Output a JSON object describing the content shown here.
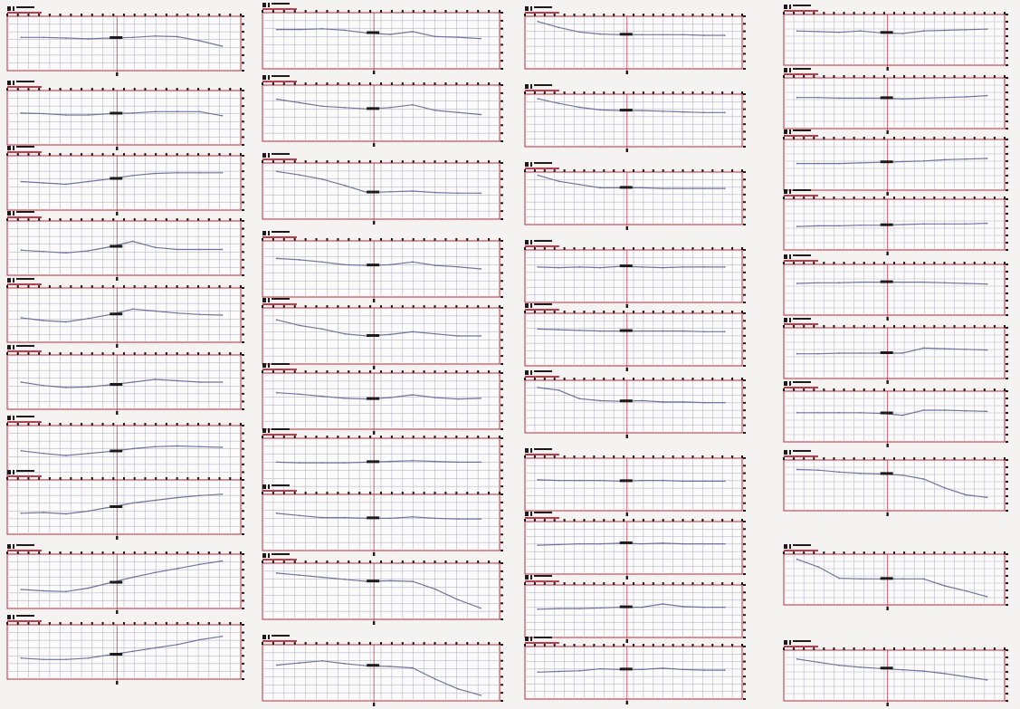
{
  "chart_data": {
    "type": "line",
    "title": "",
    "xlabel": "",
    "ylabel": "",
    "grid": true,
    "columns": [
      {
        "panels": [
          {
            "values": [
              4.9,
              4.9,
              4.8,
              4.7,
              4.8,
              4.9,
              5.1,
              5.0,
              4.4,
              3.6
            ]
          },
          {
            "values": [
              4.7,
              4.6,
              4.4,
              4.4,
              4.6,
              4.7,
              4.9,
              4.9,
              4.9,
              4.3
            ]
          },
          {
            "values": [
              4.2,
              4.0,
              3.8,
              4.2,
              4.6,
              5.1,
              5.4,
              5.5,
              5.5,
              5.5
            ]
          },
          {
            "values": [
              3.7,
              3.5,
              3.3,
              3.6,
              4.2,
              5.0,
              4.1,
              3.8,
              3.8,
              3.8
            ]
          },
          {
            "values": [
              3.6,
              3.2,
              3.0,
              3.5,
              4.1,
              4.9,
              4.6,
              4.3,
              4.1,
              4.0
            ]
          },
          {
            "values": [
              4.0,
              3.5,
              3.2,
              3.3,
              3.6,
              4.0,
              4.4,
              4.2,
              4.0,
              4.0
            ]
          },
          {
            "values": [
              4.3,
              3.9,
              3.6,
              3.9,
              4.2,
              4.6,
              4.9,
              5.0,
              4.9,
              4.8
            ]
          },
          {
            "values": [
              3.1,
              3.2,
              3.0,
              3.4,
              4.0,
              4.6,
              5.0,
              5.4,
              5.7,
              5.9
            ]
          },
          {
            "values": [
              2.8,
              2.6,
              2.5,
              3.0,
              3.8,
              4.6,
              5.3,
              5.9,
              6.5,
              7.0
            ]
          },
          {
            "values": [
              3.1,
              2.9,
              2.9,
              3.1,
              3.6,
              4.1,
              4.6,
              5.1,
              5.8,
              6.3
            ]
          }
        ]
      },
      {
        "panels": [
          {
            "values": [
              5.6,
              5.6,
              5.7,
              5.5,
              5.1,
              4.9,
              5.3,
              4.6,
              4.5,
              4.3
            ]
          },
          {
            "values": [
              6.0,
              5.5,
              5.0,
              4.8,
              4.6,
              4.8,
              5.2,
              4.4,
              4.1,
              3.8
            ]
          },
          {
            "values": [
              6.8,
              6.3,
              5.7,
              4.8,
              3.8,
              3.9,
              4.0,
              3.8,
              3.7,
              3.7
            ]
          },
          {
            "values": [
              5.5,
              5.3,
              5.0,
              4.6,
              4.5,
              4.6,
              5.0,
              4.5,
              4.3,
              4.0
            ]
          },
          {
            "values": [
              6.3,
              5.5,
              5.0,
              4.3,
              4.0,
              4.2,
              4.6,
              4.3,
              4.0,
              4.0
            ]
          },
          {
            "values": [
              5.2,
              5.0,
              4.7,
              4.4,
              4.3,
              4.5,
              4.9,
              4.5,
              4.3,
              4.4
            ]
          },
          {
            "values": [
              4.6,
              4.5,
              4.5,
              4.5,
              4.6,
              4.7,
              4.8,
              4.7,
              4.6,
              4.6
            ]
          },
          {
            "values": [
              5.3,
              5.0,
              4.7,
              4.7,
              4.6,
              4.6,
              4.8,
              4.6,
              4.5,
              4.5
            ]
          },
          {
            "values": [
              6.6,
              6.3,
              6.0,
              5.7,
              5.4,
              5.5,
              5.4,
              4.3,
              2.8,
              1.6
            ]
          },
          {
            "values": [
              5.1,
              5.4,
              5.7,
              5.3,
              5.0,
              4.9,
              4.7,
              3.1,
              1.7,
              0.8
            ]
          }
        ]
      },
      {
        "panels": [
          {
            "values": [
              7.2,
              6.3,
              5.6,
              5.3,
              5.2,
              5.2,
              5.2,
              5.2,
              5.1,
              5.1
            ]
          },
          {
            "values": [
              7.3,
              6.6,
              6.0,
              5.6,
              5.5,
              5.5,
              5.4,
              5.3,
              5.2,
              5.2
            ]
          },
          {
            "values": [
              7.5,
              6.6,
              6.1,
              5.6,
              5.6,
              5.6,
              5.5,
              5.5,
              5.5,
              5.5
            ]
          },
          {
            "values": [
              5.4,
              5.3,
              5.4,
              5.3,
              5.5,
              5.4,
              5.3,
              5.4,
              5.4,
              5.4
            ]
          },
          {
            "values": [
              5.6,
              5.5,
              5.4,
              5.3,
              5.3,
              5.3,
              5.3,
              5.3,
              5.2,
              5.2
            ]
          },
          {
            "values": [
              6.9,
              6.5,
              5.2,
              4.9,
              4.8,
              4.9,
              4.7,
              4.7,
              4.6,
              4.6
            ]
          },
          {
            "values": [
              4.7,
              4.6,
              4.6,
              4.6,
              4.5,
              4.6,
              4.6,
              4.5,
              4.5,
              4.5
            ]
          },
          {
            "values": [
              4.4,
              4.5,
              4.6,
              4.6,
              4.7,
              4.6,
              4.7,
              4.6,
              4.6,
              4.6
            ]
          },
          {
            "values": [
              4.3,
              4.4,
              4.4,
              4.5,
              4.6,
              4.6,
              5.1,
              4.7,
              4.6,
              4.6
            ]
          },
          {
            "values": [
              4.1,
              4.2,
              4.3,
              4.6,
              4.5,
              4.5,
              4.7,
              4.5,
              4.4,
              4.4
            ]
          }
        ]
      },
      {
        "panels": [
          {
            "values": [
              5.4,
              5.3,
              5.2,
              5.4,
              5.1,
              5.0,
              5.4,
              5.5,
              5.6,
              5.7
            ]
          },
          {
            "values": [
              4.9,
              4.9,
              4.8,
              4.8,
              4.8,
              4.7,
              4.8,
              4.9,
              5.0,
              5.2
            ]
          },
          {
            "values": [
              4.2,
              4.2,
              4.2,
              4.3,
              4.4,
              4.5,
              4.6,
              4.8,
              4.9,
              5.0
            ]
          },
          {
            "values": [
              3.7,
              3.8,
              3.8,
              3.9,
              3.9,
              4.0,
              4.1,
              4.1,
              4.1,
              4.2
            ]
          },
          {
            "values": [
              5.0,
              5.1,
              5.1,
              5.2,
              5.2,
              5.2,
              5.2,
              5.1,
              5.0,
              4.9
            ]
          },
          {
            "values": [
              3.9,
              3.9,
              4.0,
              4.0,
              4.0,
              4.0,
              4.8,
              4.7,
              4.6,
              4.5
            ]
          },
          {
            "values": [
              4.6,
              4.6,
              4.6,
              4.6,
              4.5,
              4.2,
              5.0,
              5.0,
              4.9,
              4.8
            ]
          },
          {
            "values": [
              6.5,
              6.4,
              6.1,
              5.9,
              5.8,
              5.6,
              5.0,
              3.6,
              2.5,
              2.1
            ]
          },
          {
            "values": [
              7.2,
              6.0,
              4.2,
              4.1,
              4.1,
              4.1,
              4.1,
              3.0,
              2.2,
              1.3
            ]
          },
          {
            "values": [
              6.6,
              6.1,
              5.6,
              5.3,
              5.1,
              4.9,
              4.7,
              4.3,
              3.8,
              3.3
            ]
          }
        ]
      }
    ]
  }
}
